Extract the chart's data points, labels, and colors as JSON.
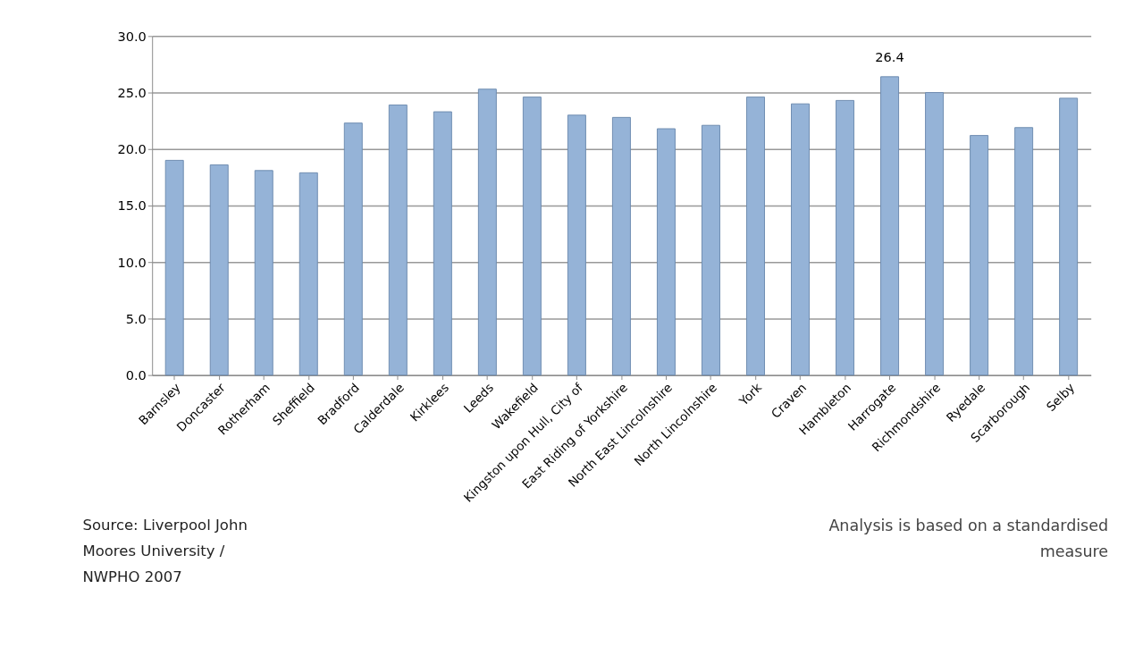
{
  "chart_data": {
    "type": "bar",
    "categories": [
      "Barnsley",
      "Doncaster",
      "Rotherham",
      "Sheffield",
      "Bradford",
      "Calderdale",
      "Kirklees",
      "Leeds",
      "Wakefield",
      "Kingston upon Hull, City of",
      "East Riding of Yorkshire",
      "North East Lincolnshire",
      "North Lincolnshire",
      "York",
      "Craven",
      "Hambleton",
      "Harrogate",
      "Richmondshire",
      "Ryedale",
      "Scarborough",
      "Selby"
    ],
    "values": [
      19.0,
      18.6,
      18.1,
      17.9,
      22.3,
      23.9,
      23.3,
      25.3,
      24.6,
      23.0,
      22.8,
      21.8,
      22.1,
      24.6,
      24.0,
      24.3,
      26.4,
      25.0,
      21.2,
      21.9,
      24.5
    ],
    "value_labels": [
      null,
      null,
      null,
      null,
      null,
      null,
      null,
      null,
      null,
      null,
      null,
      null,
      null,
      null,
      null,
      null,
      "26.4",
      null,
      null,
      null,
      null
    ],
    "color": "#95b3d7",
    "ylim": [
      0,
      30
    ],
    "yticks": [
      {
        "value": 0,
        "label": "0.0"
      },
      {
        "value": 5,
        "label": "5.0"
      },
      {
        "value": 10,
        "label": "10.0"
      },
      {
        "value": 15,
        "label": "15.0"
      },
      {
        "value": 20,
        "label": "20.0"
      },
      {
        "value": 25,
        "label": "25.0"
      },
      {
        "value": 30,
        "label": "30.0"
      }
    ],
    "grid": "y",
    "annotations": [
      "Source: Liverpool John\nMoores University /\nNWPHO 2007",
      "Analysis is based on a standardised\nmeasure"
    ]
  }
}
